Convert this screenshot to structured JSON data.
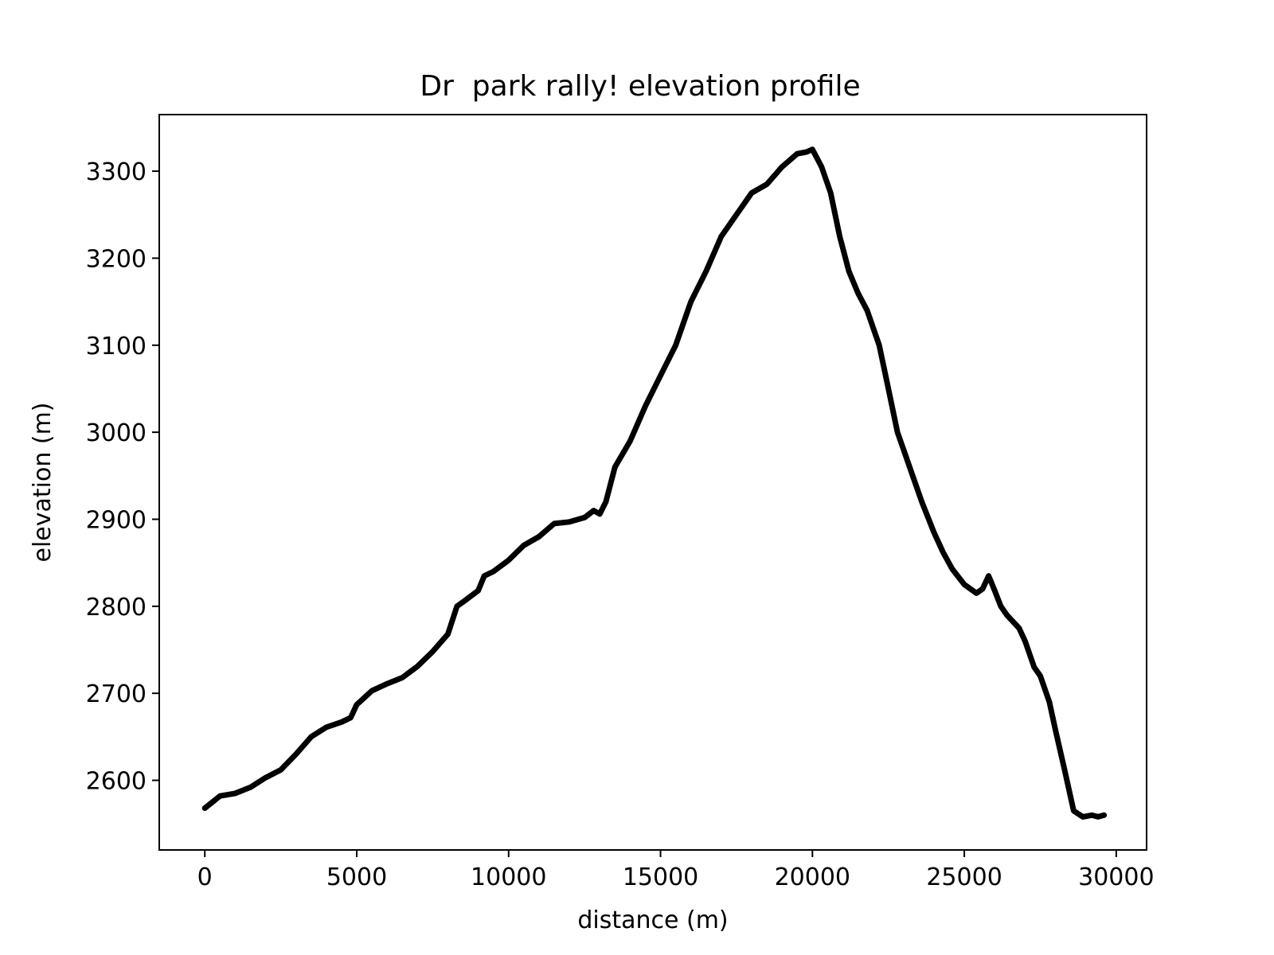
{
  "chart_data": {
    "type": "line",
    "title": "Dr  park rally! elevation profile",
    "xlabel": "distance (m)",
    "ylabel": "elevation (m)",
    "xlim": [
      -1500,
      31000
    ],
    "ylim": [
      2520,
      3365
    ],
    "xticks": [
      0,
      5000,
      10000,
      15000,
      20000,
      25000,
      30000
    ],
    "yticks": [
      2600,
      2700,
      2800,
      2900,
      3000,
      3100,
      3200,
      3300
    ],
    "grid": false,
    "line_color": "#000000",
    "x": [
      0,
      250,
      500,
      1000,
      1500,
      2000,
      2500,
      3000,
      3500,
      4000,
      4500,
      4800,
      5000,
      5500,
      6000,
      6500,
      7000,
      7500,
      8000,
      8300,
      8500,
      9000,
      9200,
      9500,
      10000,
      10500,
      11000,
      11500,
      12000,
      12500,
      12800,
      13000,
      13200,
      13500,
      14000,
      14500,
      15000,
      15500,
      16000,
      16500,
      17000,
      17500,
      18000,
      18500,
      19000,
      19500,
      19800,
      20000,
      20300,
      20600,
      20900,
      21200,
      21500,
      21800,
      22200,
      22500,
      22800,
      23000,
      23300,
      23600,
      24000,
      24300,
      24600,
      25000,
      25400,
      25600,
      25800,
      26000,
      26200,
      26400,
      26800,
      27000,
      27300,
      27500,
      27800,
      28000,
      28300,
      28600,
      28900,
      29200,
      29400,
      29600
    ],
    "y": [
      2568,
      2575,
      2582,
      2585,
      2592,
      2603,
      2612,
      2630,
      2650,
      2661,
      2667,
      2672,
      2687,
      2703,
      2711,
      2718,
      2731,
      2748,
      2768,
      2800,
      2805,
      2818,
      2835,
      2840,
      2853,
      2870,
      2880,
      2895,
      2897,
      2902,
      2910,
      2906,
      2920,
      2960,
      2990,
      3030,
      3065,
      3100,
      3150,
      3185,
      3225,
      3250,
      3275,
      3285,
      3305,
      3320,
      3322,
      3325,
      3305,
      3275,
      3225,
      3185,
      3160,
      3140,
      3100,
      3050,
      3000,
      2980,
      2950,
      2920,
      2885,
      2862,
      2843,
      2825,
      2815,
      2820,
      2835,
      2818,
      2800,
      2790,
      2775,
      2760,
      2730,
      2720,
      2690,
      2658,
      2612,
      2565,
      2558,
      2560,
      2558,
      2560
    ]
  }
}
